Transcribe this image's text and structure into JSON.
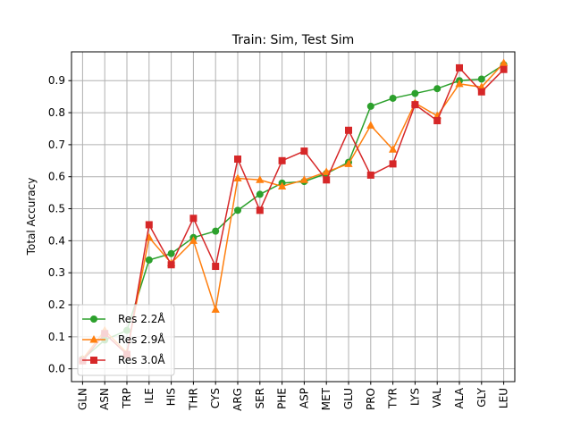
{
  "chart_data": {
    "type": "line",
    "title": "Train: Sim, Test Sim",
    "xlabel": "",
    "ylabel": "Total Accuracy",
    "categories": [
      "GLN",
      "ASN",
      "TRP",
      "ILE",
      "HIS",
      "THR",
      "CYS",
      "ARG",
      "SER",
      "PHE",
      "ASP",
      "MET",
      "GLU",
      "PRO",
      "TYR",
      "LYS",
      "VAL",
      "ALA",
      "GLY",
      "LEU"
    ],
    "yticks": [
      "0.0",
      "0.1",
      "0.2",
      "0.3",
      "0.4",
      "0.5",
      "0.6",
      "0.7",
      "0.8",
      "0.9"
    ],
    "ylim": [
      -0.04,
      0.99
    ],
    "grid": true,
    "legend_position": "lower-left",
    "series": [
      {
        "name": "Res 2.2Å",
        "color": "#2ca02c",
        "marker": "circle",
        "values": [
          0.03,
          0.09,
          0.12,
          0.34,
          0.36,
          0.41,
          0.43,
          0.495,
          0.545,
          0.58,
          0.585,
          0.61,
          0.645,
          0.82,
          0.845,
          0.86,
          0.875,
          0.9,
          0.905,
          0.95
        ]
      },
      {
        "name": "Res 2.9Å",
        "color": "#ff7f0e",
        "marker": "triangle",
        "values": [
          0.03,
          0.12,
          0.05,
          0.41,
          0.33,
          0.4,
          0.185,
          0.595,
          0.59,
          0.57,
          0.59,
          0.615,
          0.64,
          0.76,
          0.685,
          0.83,
          0.79,
          0.89,
          0.88,
          0.955
        ]
      },
      {
        "name": "Res 3.0Å",
        "color": "#d62728",
        "marker": "square",
        "values": [
          0.025,
          0.11,
          0.045,
          0.45,
          0.325,
          0.47,
          0.32,
          0.655,
          0.495,
          0.65,
          0.68,
          0.59,
          0.745,
          0.605,
          0.64,
          0.825,
          0.775,
          0.94,
          0.865,
          0.935
        ]
      }
    ]
  }
}
